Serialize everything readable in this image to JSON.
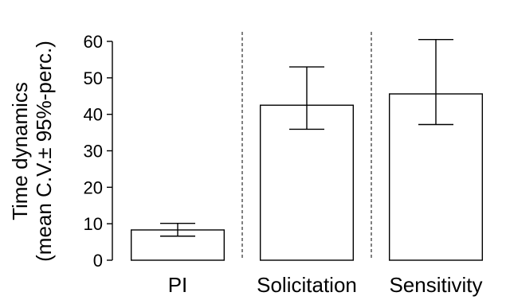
{
  "chart_data": {
    "type": "bar",
    "categories": [
      "PI",
      "Solicitation",
      "Sensitivity"
    ],
    "values": [
      8.3,
      42.5,
      45.6
    ],
    "errors": [
      {
        "low": 6.6,
        "high": 10.1
      },
      {
        "low": 35.9,
        "high": 53.0
      },
      {
        "low": 37.2,
        "high": 60.5
      }
    ],
    "ylabel": "Time dynamics",
    "ylabel_sub": "(mean C.V.± 95%-perc.)",
    "xlabel": "",
    "ylim": [
      0,
      60
    ],
    "yticks": [
      0,
      10,
      20,
      30,
      40,
      50,
      60
    ],
    "grid": false,
    "group_dividers": true,
    "colors": {
      "bar_fill": "#ffffff",
      "bar_stroke": "#000000"
    }
  }
}
